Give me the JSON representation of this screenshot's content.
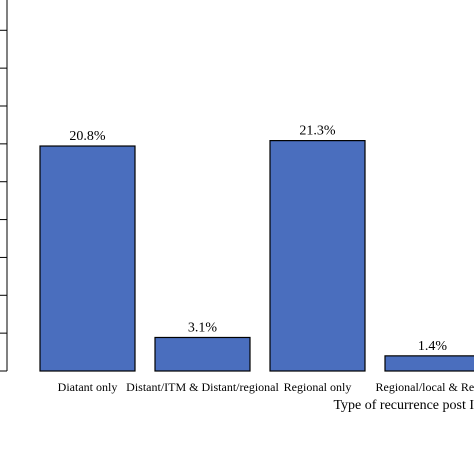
{
  "chart_data": {
    "type": "bar",
    "categories": [
      "Diatant only",
      "Distant/ITM & Distant/regional",
      "Regional only",
      "Regional/local & Regio"
    ],
    "values": [
      20.8,
      3.1,
      21.3,
      1.4
    ],
    "value_labels": [
      "20.8%",
      "3.1%",
      "21.3%",
      "1.4%"
    ],
    "color": "#4a6ebe",
    "x_label": "Type of recurrence post I",
    "ylim": [
      0,
      34.3
    ],
    "yticks": [
      0,
      3.5,
      7,
      10.5,
      14,
      17.5,
      21,
      24.5,
      28,
      31.5
    ]
  }
}
